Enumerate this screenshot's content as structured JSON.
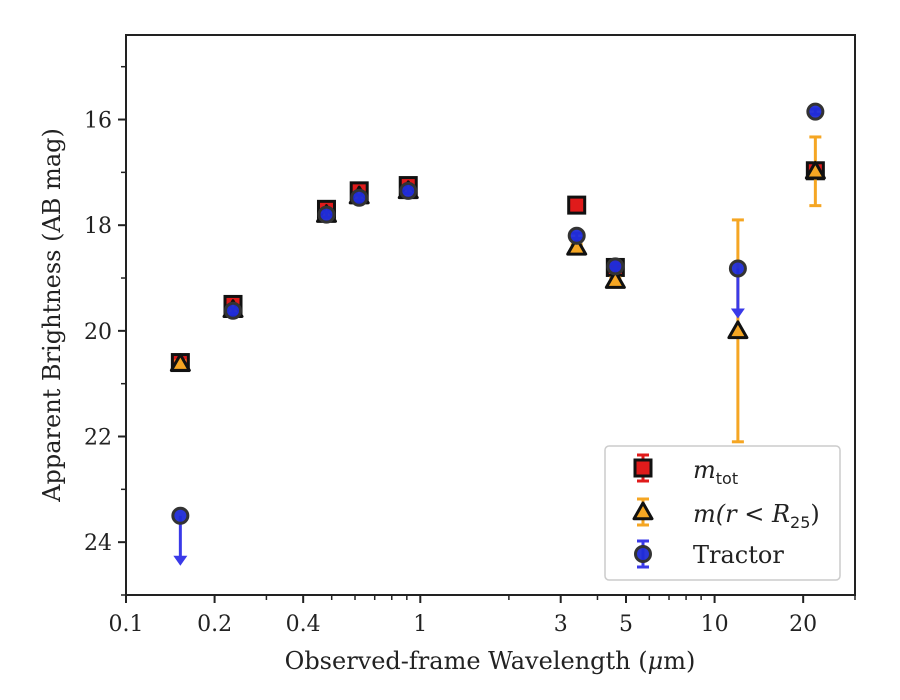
{
  "chart_data": {
    "type": "scatter",
    "title": "",
    "xlabel_prefix": "Observed-frame Wavelength (",
    "xlabel_mu": "μ",
    "xlabel_suffix": "m)",
    "ylabel": "Apparent Brightness (AB mag)",
    "xscale": "log",
    "xlim": [
      0.1,
      30
    ],
    "ylim": [
      25,
      14.4
    ],
    "y_inverted": true,
    "grid": false,
    "x_ticks": [
      0.1,
      0.2,
      0.4,
      1,
      3,
      5,
      10,
      20
    ],
    "x_tick_labels": [
      "0.1",
      "0.2",
      "0.4",
      "1",
      "3",
      "5",
      "10",
      "20"
    ],
    "y_ticks": [
      16,
      18,
      20,
      22,
      24
    ],
    "y_tick_labels": [
      "16",
      "18",
      "20",
      "22",
      "24"
    ],
    "legend_position": "lower-right",
    "series": [
      {
        "name": "m_tot",
        "marker": "square",
        "color": "#e01b1b",
        "errcolor": "#e01b1b",
        "points": [
          {
            "x": 0.153,
            "y": 20.6,
            "err": 0.05
          },
          {
            "x": 0.231,
            "y": 19.5,
            "err": 0.05
          },
          {
            "x": 0.48,
            "y": 17.7,
            "err": 0.05
          },
          {
            "x": 0.62,
            "y": 17.35,
            "err": 0.05
          },
          {
            "x": 0.91,
            "y": 17.25,
            "err": 0.05
          },
          {
            "x": 3.4,
            "y": 17.62,
            "err": 0.03
          },
          {
            "x": 4.6,
            "y": 18.8,
            "err": 0.05
          },
          {
            "x": 22,
            "y": 16.97,
            "err": 0.05
          }
        ]
      },
      {
        "name": "m(r < R_25)",
        "marker": "triangle",
        "color": "#f5a623",
        "errcolor": "#f5a623",
        "points": [
          {
            "x": 0.153,
            "y": 20.62,
            "err": 0.05
          },
          {
            "x": 0.231,
            "y": 19.6,
            "err": 0.05
          },
          {
            "x": 0.48,
            "y": 17.8,
            "err": 0.05
          },
          {
            "x": 0.62,
            "y": 17.45,
            "err": 0.05
          },
          {
            "x": 0.91,
            "y": 17.35,
            "err": 0.05
          },
          {
            "x": 3.4,
            "y": 18.42,
            "err": 0.05
          },
          {
            "x": 4.6,
            "y": 19.05,
            "err": 0.05
          },
          {
            "x": 12,
            "y": 20.0,
            "err_lo": 2.1,
            "err_hi": 2.1
          },
          {
            "x": 22,
            "y": 16.98,
            "err_lo": 0.65,
            "err_hi": 0.65
          }
        ]
      },
      {
        "name": "Tractor",
        "marker": "circle",
        "color": "#1f2bd6",
        "errcolor": "#3a3ae8",
        "points": [
          {
            "x": 0.153,
            "y": 23.5,
            "upper_limit": true
          },
          {
            "x": 0.231,
            "y": 19.62,
            "err": 0.05
          },
          {
            "x": 0.48,
            "y": 17.8,
            "err": 0.05
          },
          {
            "x": 0.62,
            "y": 17.48,
            "err": 0.05
          },
          {
            "x": 0.91,
            "y": 17.35,
            "err": 0.05
          },
          {
            "x": 3.4,
            "y": 18.2,
            "err": 0.05
          },
          {
            "x": 4.6,
            "y": 18.78,
            "err": 0.05
          },
          {
            "x": 12,
            "y": 18.82,
            "upper_limit": true
          },
          {
            "x": 22,
            "y": 15.85,
            "err": 0.05
          }
        ]
      }
    ]
  },
  "legend": {
    "items": [
      {
        "label_main": "m",
        "label_sub": "tot"
      },
      {
        "label_main": "m(r < R",
        "label_sub": "25",
        "label_close": ")"
      },
      {
        "label_main": "Tractor"
      }
    ]
  }
}
